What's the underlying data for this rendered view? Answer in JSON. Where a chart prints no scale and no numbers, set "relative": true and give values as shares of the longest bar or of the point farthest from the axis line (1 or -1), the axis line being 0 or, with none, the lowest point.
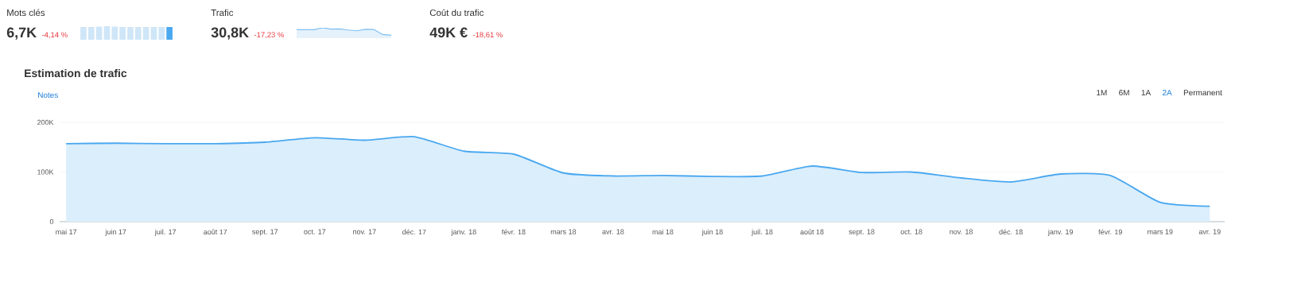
{
  "chart_data": [
    {
      "type": "bar",
      "title": "Mots clés",
      "relative": true,
      "categories": [
        null,
        null,
        null,
        null,
        null,
        null,
        null,
        null,
        null,
        null,
        null,
        null
      ],
      "values": [
        0.94,
        0.94,
        0.97,
        1,
        0.97,
        0.94,
        0.94,
        0.94,
        0.94,
        0.94,
        0.94,
        0.94
      ],
      "colors": [
        "#cfe6f8",
        "#cfe6f8",
        "#cfe6f8",
        "#cfe6f8",
        "#cfe6f8",
        "#cfe6f8",
        "#cfe6f8",
        "#cfe6f8",
        "#cfe6f8",
        "#cfe6f8",
        "#cfe6f8",
        "#4aa8f0"
      ],
      "annotations": [
        "6,7K",
        "-4,14 %"
      ]
    },
    {
      "type": "area",
      "relative": true,
      "categories": [
        null,
        null,
        null,
        null,
        null,
        null,
        null,
        null,
        null,
        null,
        null,
        null
      ],
      "values": [
        0.82,
        0.81,
        0.82,
        1,
        0.88,
        0.89,
        0.79,
        0.71,
        0.86,
        0.83,
        0.35,
        0.28
      ],
      "color": "#7fc0f2",
      "annotations": [
        "Trafic",
        "30,8K",
        "-17,23 %"
      ]
    },
    {
      "type": "other",
      "title": "Coût du trafic",
      "annotations": [
        "49K €",
        "-18,61 %"
      ]
    },
    {
      "type": "area",
      "title": "Estimation de trafic",
      "color": "#4aa8f0",
      "categories": [
        "mai 17",
        "juin 17",
        "juil. 17",
        "août 17",
        "sept. 17",
        "oct. 17",
        "nov. 17",
        "déc. 17",
        "janv. 18",
        "févr. 18",
        "mars 18",
        "avr. 18",
        "mai 18",
        "juin 18",
        "juil. 18",
        "août 18",
        "sept. 18",
        "oct. 18",
        "nov. 18",
        "déc. 18",
        "janv. 19",
        "févr. 19",
        "mars 19",
        "avr. 19"
      ],
      "values": [
        157000,
        158000,
        157000,
        157000,
        160000,
        169000,
        164000,
        171000,
        142000,
        136000,
        98000,
        92000,
        93000,
        91000,
        92000,
        112000,
        99000,
        100000,
        88000,
        80000,
        96000,
        93000,
        39000,
        31000
      ],
      "ylim": [
        0,
        200000
      ],
      "yticks": [
        0,
        {
          "value": 100000,
          "label": "100K"
        },
        {
          "value": 200000,
          "label": "200K"
        }
      ],
      "grid": "y",
      "annotations": [
        "Notes",
        "1M",
        "6M",
        "1A",
        "2A",
        "Permanent"
      ]
    }
  ]
}
